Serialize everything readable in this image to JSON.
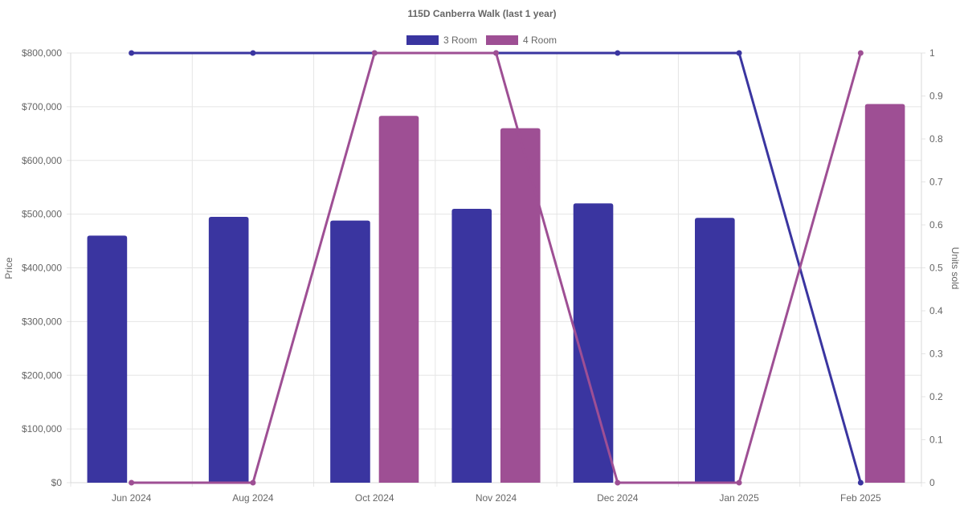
{
  "chart_data": {
    "type": "bar",
    "title": "115D Canberra Walk (last 1 year)",
    "categories": [
      "Jun 2024",
      "Aug 2024",
      "Oct 2024",
      "Nov 2024",
      "Dec 2024",
      "Jan 2025",
      "Feb 2025"
    ],
    "legend": {
      "position": "top-center",
      "items": [
        {
          "label": "3 Room",
          "color": "#3a35a0"
        },
        {
          "label": "4 Room",
          "color": "#9e4f94"
        }
      ]
    },
    "ylabel": "Price",
    "y2label": "Units sold",
    "ylim": [
      0,
      800000
    ],
    "y2lim": [
      0,
      1
    ],
    "y_ticks": [
      "$0",
      "$100,000",
      "$200,000",
      "$300,000",
      "$400,000",
      "$500,000",
      "$600,000",
      "$700,000",
      "$800,000"
    ],
    "y2_ticks": [
      "0",
      "0.1",
      "0.2",
      "0.3",
      "0.4",
      "0.5",
      "0.6",
      "0.7",
      "0.8",
      "0.9",
      "1"
    ],
    "grid": true,
    "series": [
      {
        "name": "3 Room",
        "kind": "bar",
        "axis": "price",
        "color": "#3a35a0",
        "values": [
          460000,
          495000,
          488000,
          510000,
          520000,
          493000,
          null
        ]
      },
      {
        "name": "4 Room",
        "kind": "bar",
        "axis": "price",
        "color": "#9e4f94",
        "values": [
          null,
          null,
          683000,
          660000,
          null,
          null,
          705000
        ]
      },
      {
        "name": "3 Room",
        "kind": "line",
        "axis": "units",
        "color": "#3a35a0",
        "values": [
          1,
          1,
          1,
          1,
          1,
          1,
          0
        ]
      },
      {
        "name": "4 Room",
        "kind": "line",
        "axis": "units",
        "color": "#9e4f94",
        "values": [
          0,
          0,
          1,
          1,
          0,
          0,
          1
        ]
      }
    ]
  }
}
